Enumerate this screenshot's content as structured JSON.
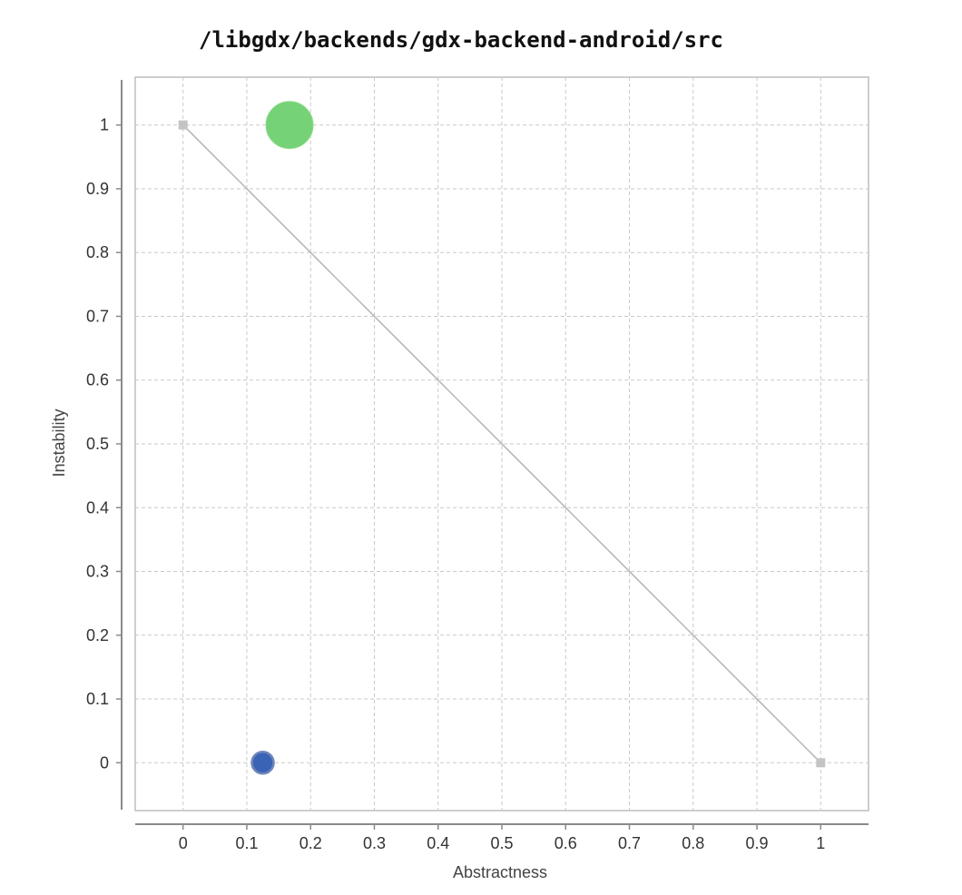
{
  "chart_data": {
    "type": "scatter",
    "title": "/libgdx/backends/gdx-backend-android/src",
    "xlabel": "Abstractness",
    "ylabel": "Instability",
    "xlim": [
      -0.075,
      1.075
    ],
    "ylim": [
      -0.075,
      1.075
    ],
    "x_ticks": [
      "0",
      "0.1",
      "0.2",
      "0.3",
      "0.4",
      "0.5",
      "0.6",
      "0.7",
      "0.8",
      "0.9",
      "1"
    ],
    "y_ticks": [
      "0",
      "0.1",
      "0.2",
      "0.3",
      "0.4",
      "0.5",
      "0.6",
      "0.7",
      "0.8",
      "0.9",
      "1"
    ],
    "grid": true,
    "main_sequence": {
      "from": [
        0,
        1
      ],
      "to": [
        1,
        0
      ],
      "color": "#b3b3b3"
    },
    "points": [
      {
        "x": 0.167,
        "y": 1.0,
        "size": "large",
        "color": "#6fd06f"
      },
      {
        "x": 0.125,
        "y": 0.0,
        "size": "small",
        "color": "#3a63b5"
      }
    ]
  }
}
